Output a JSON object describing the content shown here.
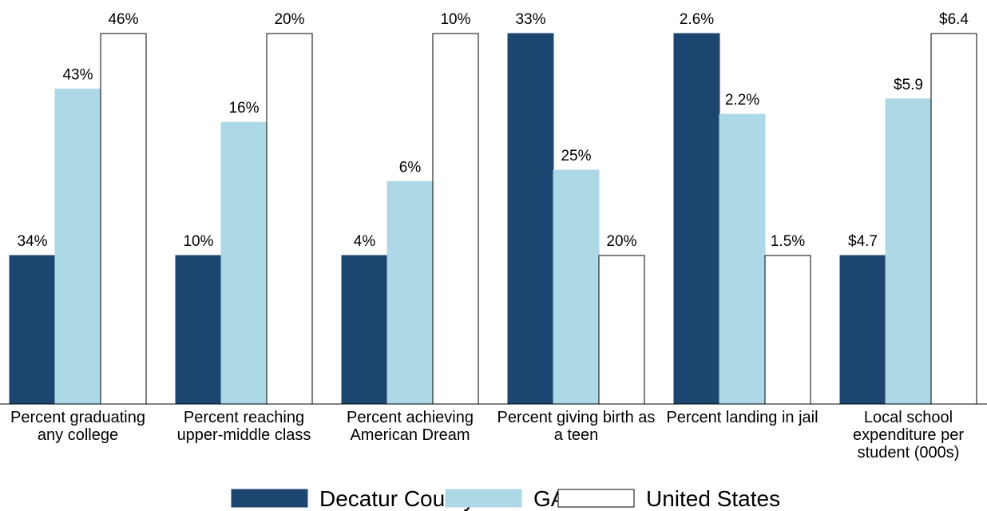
{
  "chart_data": {
    "type": "bar",
    "categories": [
      "Percent graduating any college",
      "Percent reaching upper-middle class",
      "Percent achieving American Dream",
      "Percent giving birth as a teen",
      "Percent landing in jail",
      "Local school expenditure per student (000s)"
    ],
    "series": [
      {
        "name": "Decatur County",
        "color": "#1c4670",
        "values": [
          34,
          10,
          4,
          33,
          2.6,
          4.7
        ],
        "value_labels": [
          "34%",
          "10%",
          "4%",
          "33%",
          "2.6%",
          "$4.7"
        ]
      },
      {
        "name": "GA",
        "color": "#add8e6",
        "values": [
          43,
          16,
          6,
          25,
          2.2,
          5.9
        ],
        "value_labels": [
          "43%",
          "16%",
          "6%",
          "25%",
          "2.2%",
          "$5.9"
        ]
      },
      {
        "name": "United States",
        "color": "#ffffff",
        "values": [
          46,
          20,
          10,
          20,
          1.5,
          6.4
        ],
        "value_labels": [
          "46%",
          "20%",
          "10%",
          "20%",
          "1.5%",
          "$6.4"
        ]
      }
    ]
  }
}
